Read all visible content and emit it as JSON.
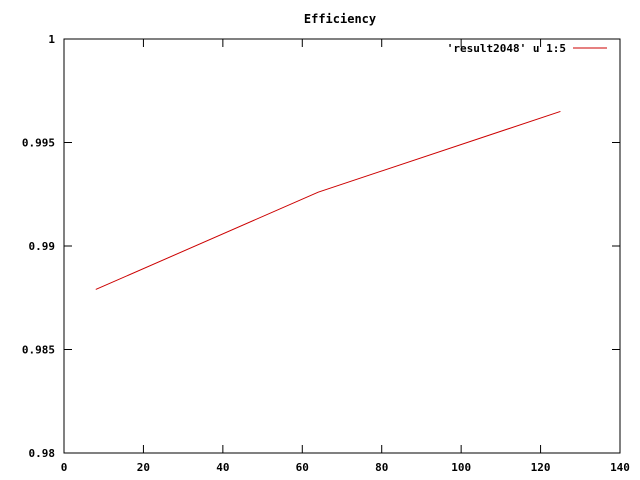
{
  "chart_data": {
    "type": "line",
    "title": "Efficiency",
    "xlabel": "",
    "ylabel": "",
    "xlim": [
      0,
      140
    ],
    "ylim": [
      0.98,
      1
    ],
    "x_ticks": [
      0,
      20,
      40,
      60,
      80,
      100,
      120,
      140
    ],
    "x_tick_labels": [
      "0",
      "20",
      "40",
      "60",
      "80",
      "100",
      "120",
      "140"
    ],
    "y_ticks": [
      0.98,
      0.985,
      0.99,
      0.995,
      1
    ],
    "y_tick_labels": [
      "0.98",
      "0.985",
      "0.99",
      "0.995",
      "1"
    ],
    "grid": false,
    "legend_position": "top-right",
    "series": [
      {
        "name": "'result2048' u 1:5",
        "color": "#cc0000",
        "x": [
          8,
          64,
          125
        ],
        "y": [
          0.9879,
          0.9926,
          0.9965
        ]
      }
    ]
  }
}
